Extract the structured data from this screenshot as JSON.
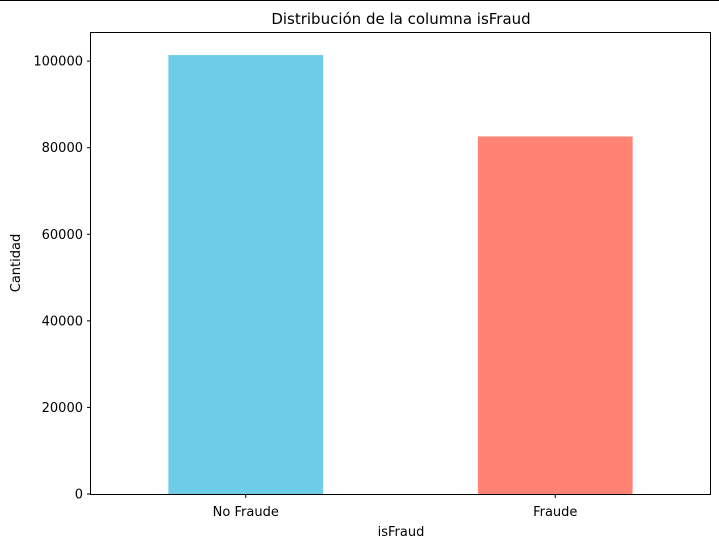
{
  "chart_data": {
    "type": "bar",
    "title": "Distribución de la columna isFraud",
    "xlabel": "isFraud",
    "ylabel": "Cantidad",
    "categories": [
      "No Fraude",
      "Fraude"
    ],
    "values": [
      101400,
      82600
    ],
    "colors": [
      "#6dcde8",
      "#ff8272"
    ],
    "ylim": [
      0,
      106500
    ],
    "yticks": [
      0,
      20000,
      40000,
      60000,
      80000,
      100000
    ],
    "grid": false,
    "legend": false
  }
}
